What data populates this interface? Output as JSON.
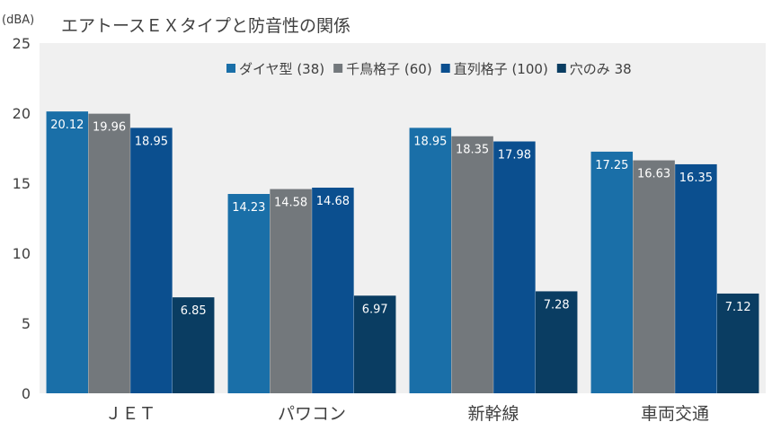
{
  "chart_data": {
    "type": "bar",
    "title": "エアトースＥＸタイプと防音性の関係",
    "unit_label": "(dBA)",
    "xlabel": "",
    "ylabel": "",
    "ylim": [
      0,
      25
    ],
    "yticks": [
      0,
      5,
      10,
      15,
      20,
      25
    ],
    "categories": [
      "ＪＥＴ",
      "パワコン",
      "新幹線",
      "車両交通"
    ],
    "series": [
      {
        "name": "ダイヤ型 (38)",
        "values": [
          20.12,
          14.23,
          18.95,
          17.25
        ],
        "color": "#1a6fa8"
      },
      {
        "name": "千鳥格子 (60)",
        "values": [
          19.96,
          14.58,
          18.35,
          16.63
        ],
        "color": "#73787c"
      },
      {
        "name": "直列格子 (100)",
        "values": [
          18.95,
          14.68,
          17.98,
          16.35
        ],
        "color": "#0b4f8f"
      },
      {
        "name": "穴のみ 38",
        "values": [
          6.85,
          6.97,
          7.28,
          7.12
        ],
        "color": "#0a3d62"
      }
    ],
    "plot_background": "#f0f0f0",
    "legend_position": "top-right",
    "grid": false
  }
}
